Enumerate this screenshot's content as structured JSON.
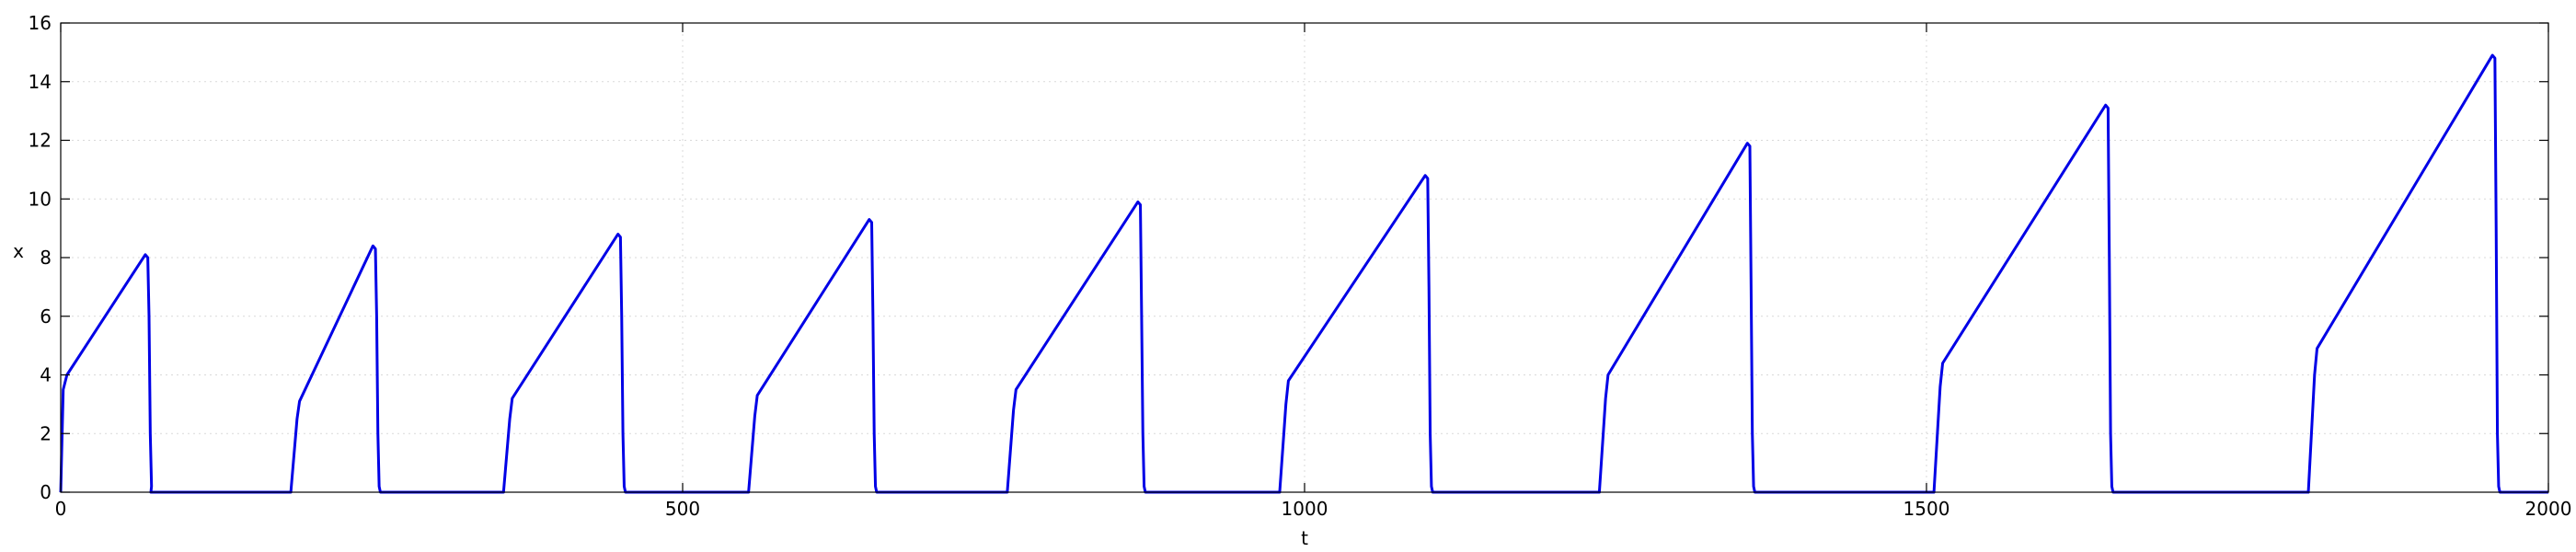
{
  "chart_data": {
    "type": "line",
    "title": "",
    "xlabel": "t",
    "ylabel": "x",
    "xlim": [
      0,
      2000
    ],
    "ylim": [
      0,
      16
    ],
    "xticks": [
      0,
      500,
      1000,
      1500,
      2000
    ],
    "yticks": [
      0,
      2,
      4,
      6,
      8,
      10,
      12,
      14,
      16
    ],
    "grid": true,
    "legend": "none",
    "series": [
      {
        "color": "#0000e6",
        "x": [
          0,
          2,
          5,
          68,
          70,
          71,
          72,
          73,
          72.5,
          73,
          185,
          190,
          192,
          251,
          253,
          254,
          255,
          256,
          257,
          356,
          361,
          363,
          448,
          450,
          451,
          452,
          453,
          454,
          553,
          558,
          560,
          650,
          652,
          653,
          654,
          655,
          656,
          761,
          766,
          768,
          866,
          868,
          869,
          870,
          871,
          872,
          980,
          985,
          987,
          1097,
          1099,
          1100,
          1101,
          1102,
          1103,
          1237,
          1242,
          1244,
          1356,
          1358,
          1359,
          1360,
          1361,
          1362,
          1506,
          1511,
          1513,
          1644,
          1646,
          1647,
          1648,
          1649,
          1650,
          1807,
          1812,
          1814,
          1955,
          1957,
          1958,
          1959,
          1960,
          1961,
          2000
        ],
        "y": [
          0,
          3.5,
          4.0,
          8.1,
          8.0,
          6.0,
          2.0,
          0.2,
          0,
          0,
          0,
          2.5,
          3.1,
          8.4,
          8.3,
          6.0,
          2.0,
          0.2,
          0,
          0,
          2.5,
          3.2,
          8.8,
          8.7,
          6.0,
          2.0,
          0.2,
          0,
          0,
          2.6,
          3.3,
          9.3,
          9.2,
          6.0,
          2.0,
          0.2,
          0,
          0,
          2.8,
          3.5,
          9.9,
          9.8,
          6.0,
          2.0,
          0.2,
          0,
          0,
          3.0,
          3.8,
          10.8,
          10.7,
          7.0,
          2.0,
          0.2,
          0,
          0,
          3.2,
          4.0,
          11.9,
          11.8,
          7.0,
          2.0,
          0.2,
          0,
          0,
          3.6,
          4.4,
          13.2,
          13.1,
          8.0,
          2.0,
          0.2,
          0,
          0,
          4.0,
          4.9,
          14.9,
          14.8,
          9.0,
          2.0,
          0.2,
          0,
          0
        ]
      }
    ]
  }
}
